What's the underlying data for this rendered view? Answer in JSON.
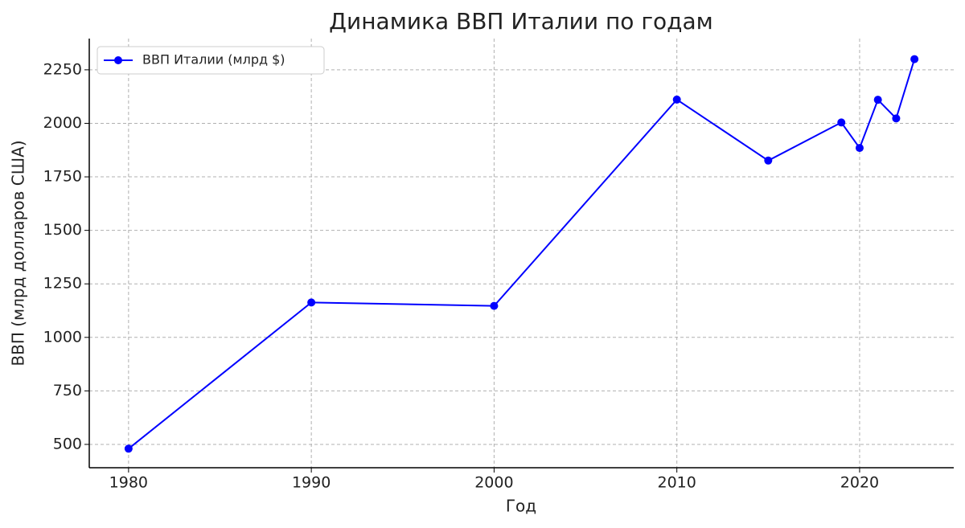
{
  "chart_data": {
    "type": "line",
    "title": "Динамика ВВП Италии по годам",
    "x_label": "Год",
    "y_label": "ВВП (млрд долларов США)",
    "x": [
      1980,
      1990,
      2000,
      2010,
      2015,
      2019,
      2020,
      2021,
      2022,
      2023
    ],
    "series": [
      {
        "name": "ВВП Италии (млрд $)",
        "color": "#0000ff",
        "values": [
          480,
          1163,
          1147,
          2111,
          1826,
          2004,
          1885,
          2110,
          2023,
          2300
        ]
      }
    ],
    "xlim": [
      1977.85,
      2025.15
    ],
    "xticks": [
      1980,
      1990,
      2000,
      2010,
      2020
    ],
    "ylim": [
      391,
      2396
    ],
    "yticks": [
      500,
      750,
      1000,
      1250,
      1500,
      1750,
      2000,
      2250
    ],
    "grid": true,
    "legend": "upper left"
  }
}
